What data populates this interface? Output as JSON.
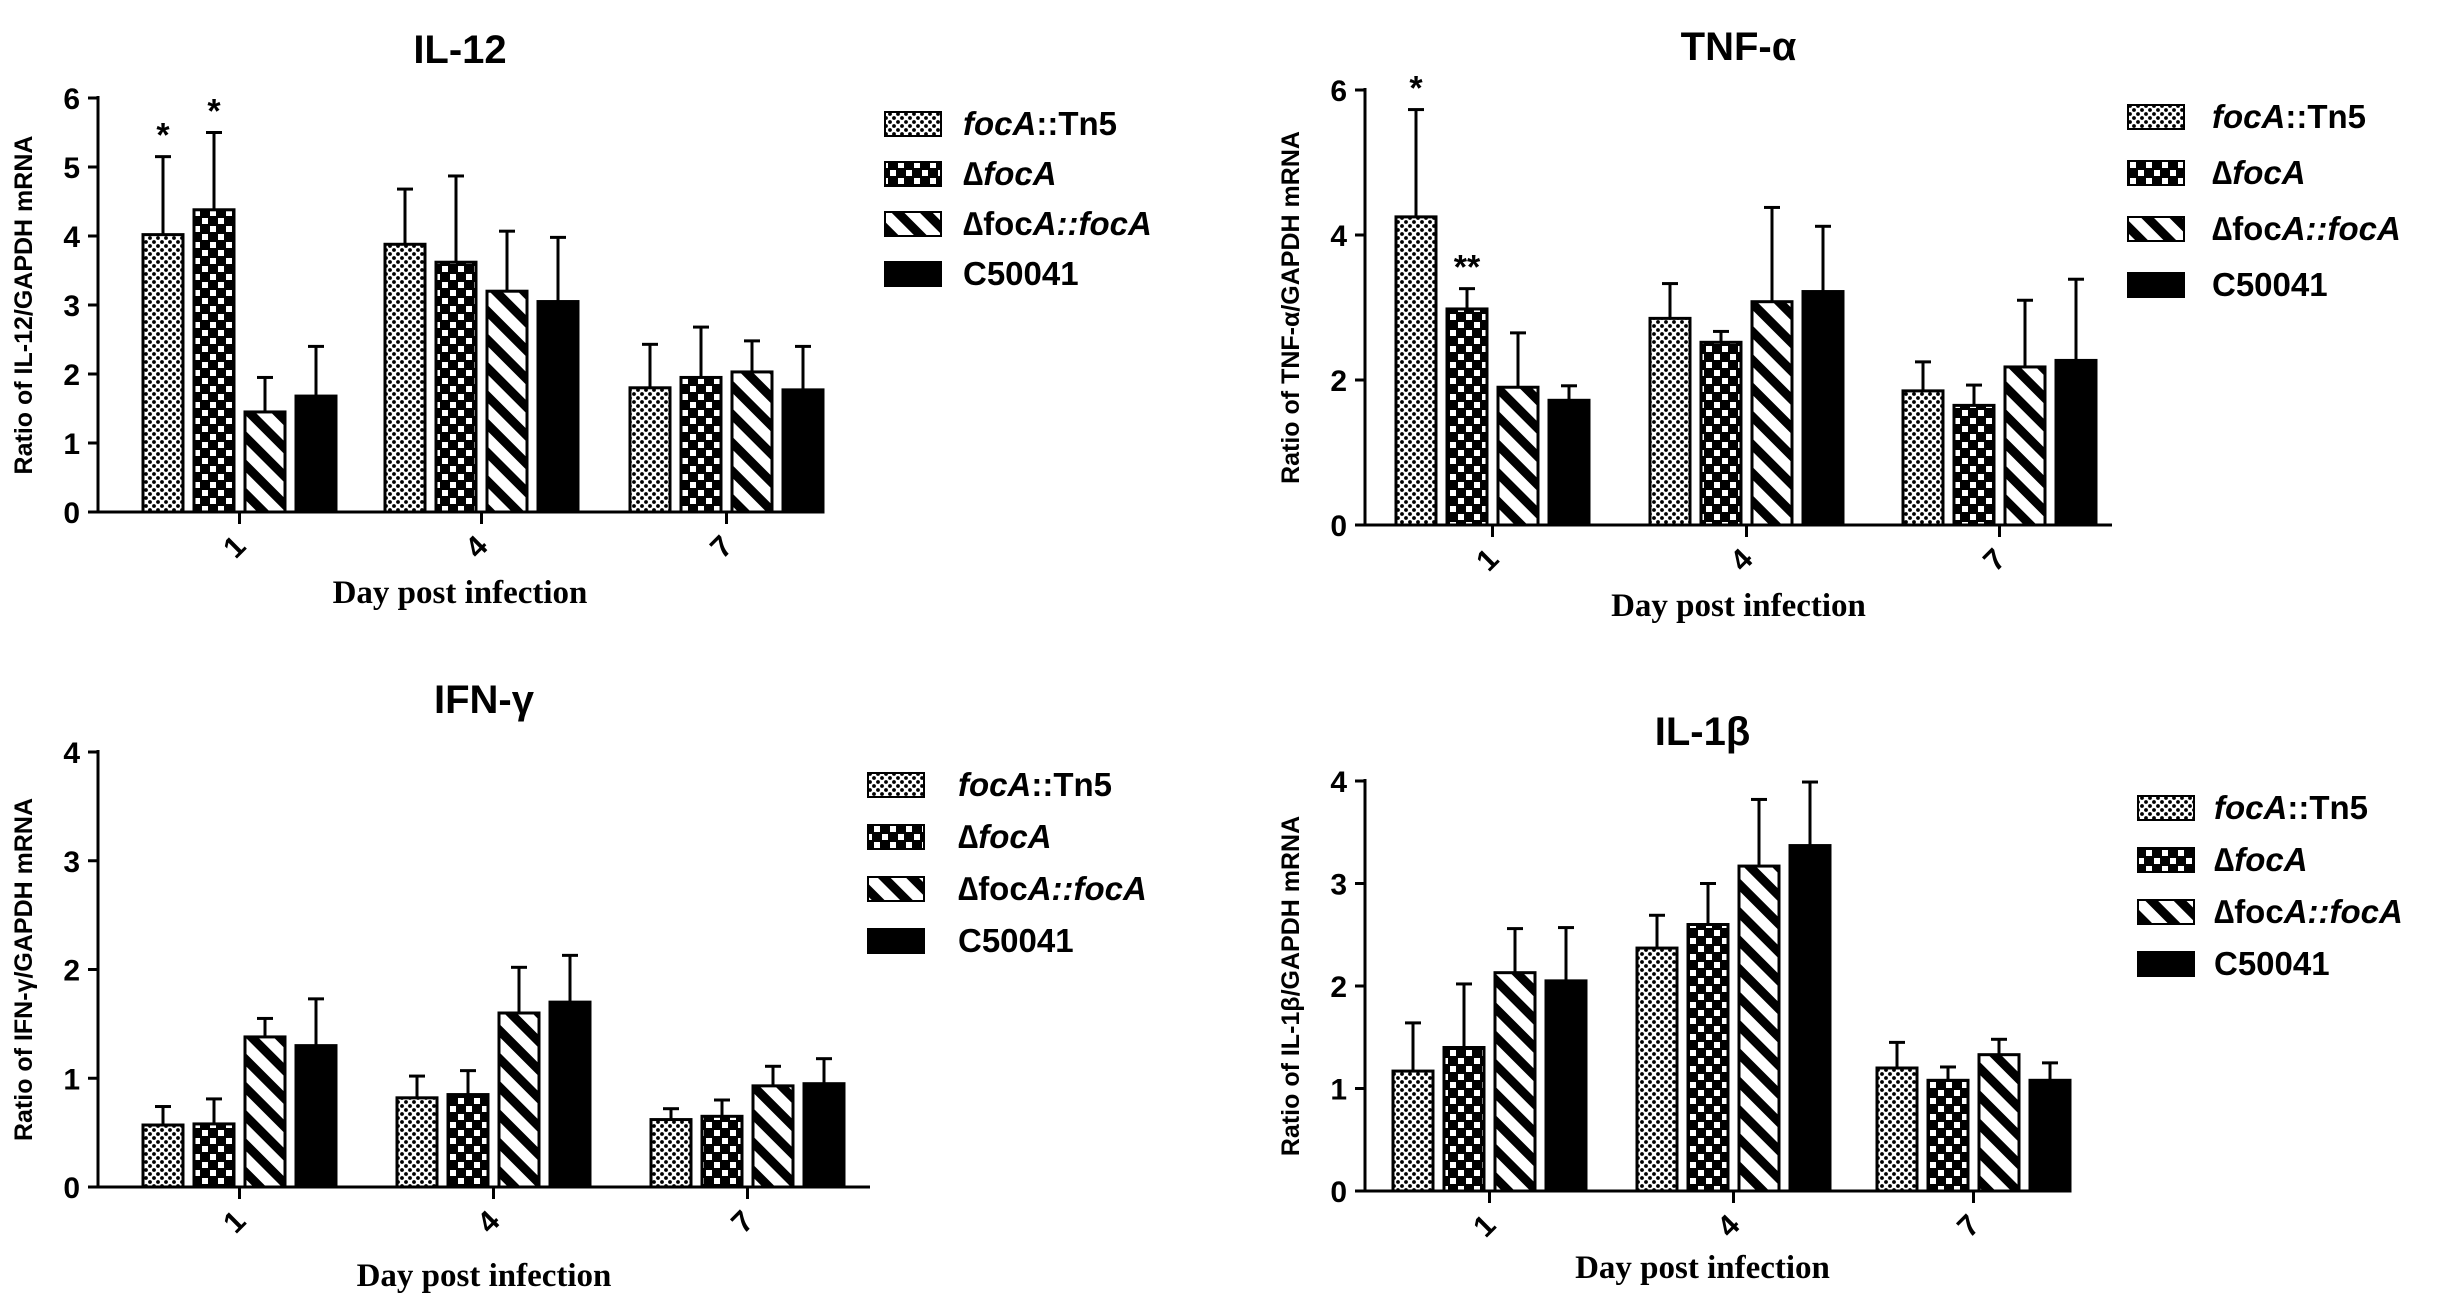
{
  "series_names": [
    {
      "prefix": "",
      "italic": "focA",
      "suffix": "::Tn5"
    },
    {
      "prefix": "∆",
      "italic": "focA",
      "suffix": ""
    },
    {
      "prefix": "∆foc",
      "italic": "A::focA",
      "suffix": ""
    },
    {
      "prefix": "C50041",
      "italic": "",
      "suffix": ""
    }
  ],
  "chart_data": [
    {
      "type": "bar",
      "title": "IL-12",
      "ylabel": "Ratio of IL-12/GAPDH mRNA",
      "xlabel": "Day post infection",
      "categories": [
        "1",
        "4",
        "7"
      ],
      "ylim": [
        0,
        6
      ],
      "yticks": [
        "0",
        "1",
        "2",
        "3",
        "4",
        "5",
        "6"
      ],
      "legend": "right",
      "series": [
        {
          "name": "focA::Tn5",
          "values": [
            4.02,
            3.88,
            1.8
          ],
          "errors": [
            1.13,
            0.8,
            0.63
          ]
        },
        {
          "name": "∆focA",
          "values": [
            4.38,
            3.62,
            1.95
          ],
          "errors": [
            1.12,
            1.25,
            0.73
          ]
        },
        {
          "name": "∆focA::focA",
          "values": [
            1.45,
            3.2,
            2.03
          ],
          "errors": [
            0.5,
            0.87,
            0.45
          ]
        },
        {
          "name": "C50041",
          "values": [
            1.68,
            3.05,
            1.77
          ],
          "errors": [
            0.72,
            0.93,
            0.63
          ]
        }
      ],
      "annotations": [
        {
          "category": "1",
          "series": "focA::Tn5",
          "text": "*"
        },
        {
          "category": "1",
          "series": "∆focA",
          "text": "*"
        }
      ]
    },
    {
      "type": "bar",
      "title": "TNF-α",
      "ylabel": "Ratio of TNF-α/GAPDH mRNA",
      "xlabel": "Day post infection",
      "categories": [
        "1",
        "4",
        "7"
      ],
      "ylim": [
        0,
        6
      ],
      "yticks": [
        "0",
        "2",
        "4",
        "6"
      ],
      "legend": "right",
      "series": [
        {
          "name": "focA::Tn5",
          "values": [
            4.25,
            2.85,
            1.85
          ],
          "errors": [
            1.48,
            0.48,
            0.4
          ]
        },
        {
          "name": "∆focA",
          "values": [
            2.98,
            2.52,
            1.65
          ],
          "errors": [
            0.28,
            0.15,
            0.28
          ]
        },
        {
          "name": "∆focA::focA",
          "values": [
            1.9,
            3.08,
            2.18
          ],
          "errors": [
            0.75,
            1.3,
            0.92
          ]
        },
        {
          "name": "C50041",
          "values": [
            1.72,
            3.22,
            2.27
          ],
          "errors": [
            0.2,
            0.9,
            1.12
          ]
        }
      ],
      "annotations": [
        {
          "category": "1",
          "series": "focA::Tn5",
          "text": "*"
        },
        {
          "category": "1",
          "series": "∆focA",
          "text": "**"
        }
      ]
    },
    {
      "type": "bar",
      "title": "IFN-γ",
      "ylabel": "Ratio of IFN-γ/GAPDH mRNA",
      "xlabel": "Day post infection",
      "categories": [
        "1",
        "4",
        "7"
      ],
      "ylim": [
        0,
        4
      ],
      "yticks": [
        "0",
        "1",
        "2",
        "3",
        "4"
      ],
      "legend": "right",
      "series": [
        {
          "name": "focA::Tn5",
          "values": [
            0.57,
            0.82,
            0.62
          ],
          "errors": [
            0.17,
            0.2,
            0.1
          ]
        },
        {
          "name": "∆focA",
          "values": [
            0.58,
            0.85,
            0.65
          ],
          "errors": [
            0.23,
            0.22,
            0.15
          ]
        },
        {
          "name": "∆focA::focA",
          "values": [
            1.38,
            1.6,
            0.93
          ],
          "errors": [
            0.17,
            0.42,
            0.18
          ]
        },
        {
          "name": "C50041",
          "values": [
            1.3,
            1.7,
            0.95
          ],
          "errors": [
            0.43,
            0.43,
            0.23
          ]
        }
      ],
      "annotations": []
    },
    {
      "type": "bar",
      "title": "IL-1β",
      "ylabel": "Ratio of IL-1β/GAPDH mRNA",
      "xlabel": "Day post infection",
      "categories": [
        "1",
        "4",
        "7"
      ],
      "ylim": [
        0,
        4
      ],
      "yticks": [
        "0",
        "1",
        "2",
        "3",
        "4"
      ],
      "legend": "right",
      "series": [
        {
          "name": "focA::Tn5",
          "values": [
            1.17,
            2.37,
            1.2
          ],
          "errors": [
            0.47,
            0.32,
            0.25
          ]
        },
        {
          "name": "∆focA",
          "values": [
            1.4,
            2.6,
            1.08
          ],
          "errors": [
            0.62,
            0.4,
            0.13
          ]
        },
        {
          "name": "∆focA::focA",
          "values": [
            2.13,
            3.17,
            1.33
          ],
          "errors": [
            0.43,
            0.65,
            0.15
          ]
        },
        {
          "name": "C50041",
          "values": [
            2.05,
            3.37,
            1.08
          ],
          "errors": [
            0.52,
            0.62,
            0.17
          ]
        }
      ],
      "annotations": []
    }
  ]
}
